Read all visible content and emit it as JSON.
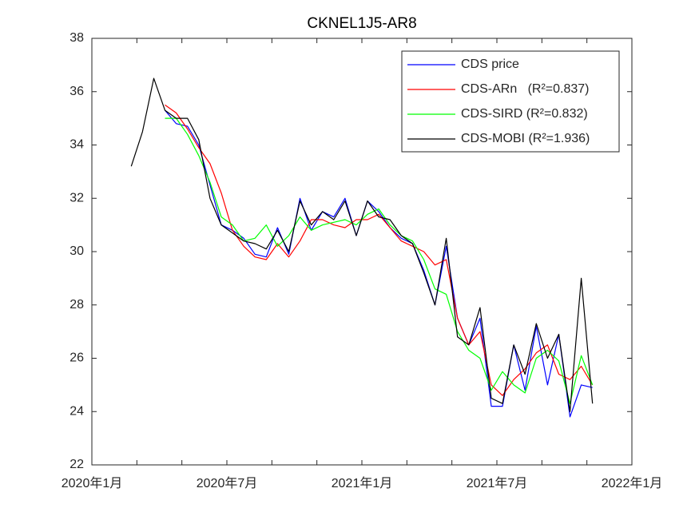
{
  "chart_data": {
    "type": "line",
    "title": "CKNEL1J5-AR8",
    "x": [
      1.75,
      2.25,
      2.75,
      3.25,
      3.75,
      4.25,
      4.75,
      5.25,
      5.75,
      6.25,
      6.75,
      7.25,
      7.75,
      8.25,
      8.75,
      9.25,
      9.75,
      10.25,
      10.75,
      11.25,
      11.75,
      12.25,
      12.75,
      13.25,
      13.75,
      14.25,
      14.75,
      15.25,
      15.75,
      16.25,
      16.75,
      17.25,
      17.75,
      18.25,
      18.75,
      19.25,
      19.75,
      20.25,
      20.75,
      21.25,
      21.75,
      22.25
    ],
    "series": [
      {
        "name": "CDS price",
        "color": "#0000ff",
        "values": [
          null,
          null,
          null,
          35.3,
          34.8,
          34.7,
          34.0,
          32.5,
          31.0,
          30.8,
          30.5,
          29.9,
          29.8,
          30.9,
          29.9,
          32.0,
          30.8,
          31.5,
          31.3,
          32.0,
          30.6,
          31.9,
          31.5,
          30.9,
          30.5,
          30.3,
          29.3,
          28.0,
          30.2,
          27.5,
          26.5,
          27.5,
          24.2,
          24.2,
          26.5,
          24.8,
          27.2,
          25.0,
          26.9,
          23.8,
          25.0,
          24.9
        ]
      },
      {
        "name": "CDS-ARn   (R²=0.837)",
        "color": "#ff0000",
        "values": [
          null,
          null,
          null,
          35.5,
          35.2,
          34.6,
          33.9,
          33.3,
          32.2,
          30.8,
          30.2,
          29.8,
          29.7,
          30.3,
          29.8,
          30.4,
          31.2,
          31.2,
          31.0,
          30.9,
          31.2,
          31.2,
          31.4,
          30.9,
          30.4,
          30.2,
          30.0,
          29.5,
          29.7,
          27.5,
          26.5,
          27.0,
          25.0,
          24.6,
          25.2,
          25.6,
          26.2,
          26.5,
          25.4,
          25.2,
          25.7,
          25.0
        ]
      },
      {
        "name": "CDS-SIRD (R²=0.832)",
        "color": "#00ff00",
        "values": [
          null,
          null,
          null,
          35.0,
          35.0,
          34.4,
          33.6,
          32.6,
          31.3,
          31.0,
          30.4,
          30.5,
          31.0,
          30.2,
          30.6,
          31.3,
          30.8,
          31.0,
          31.1,
          31.2,
          31.0,
          31.4,
          31.6,
          31.0,
          30.6,
          30.4,
          29.7,
          28.6,
          28.4,
          27.0,
          26.3,
          26.0,
          24.8,
          25.5,
          25.0,
          24.7,
          26.0,
          26.3,
          25.9,
          24.3,
          26.1,
          25.0
        ]
      },
      {
        "name": "CDS-MOBI (R²=1.936)",
        "color": "#000000",
        "values": [
          33.2,
          34.5,
          36.5,
          35.3,
          35.0,
          35.0,
          34.2,
          32.0,
          31.0,
          30.7,
          30.4,
          30.3,
          30.1,
          30.8,
          30.0,
          31.9,
          31.0,
          31.5,
          31.2,
          31.9,
          30.6,
          31.9,
          31.3,
          31.2,
          30.6,
          30.3,
          29.2,
          28.0,
          30.5,
          26.8,
          26.5,
          27.9,
          24.5,
          24.3,
          26.5,
          25.4,
          27.3,
          26.0,
          26.9,
          24.0,
          29.0,
          24.3
        ]
      }
    ],
    "xlim": [
      0,
      24
    ],
    "xticks": [
      {
        "value": 0,
        "label": "2020年1月"
      },
      {
        "value": 2,
        "label": null
      },
      {
        "value": 4,
        "label": null
      },
      {
        "value": 6,
        "label": "2020年7月"
      },
      {
        "value": 8,
        "label": null
      },
      {
        "value": 10,
        "label": null
      },
      {
        "value": 12,
        "label": "2021年1月"
      },
      {
        "value": 14,
        "label": null
      },
      {
        "value": 16,
        "label": null
      },
      {
        "value": 18,
        "label": "2021年7月"
      },
      {
        "value": 20,
        "label": null
      },
      {
        "value": 22,
        "label": null
      },
      {
        "value": 24,
        "label": "2022年1月"
      }
    ],
    "ylim": [
      22,
      38
    ],
    "yticks": [
      22,
      24,
      26,
      28,
      30,
      32,
      34,
      36,
      38
    ],
    "grid": false,
    "legend": "top-right"
  }
}
